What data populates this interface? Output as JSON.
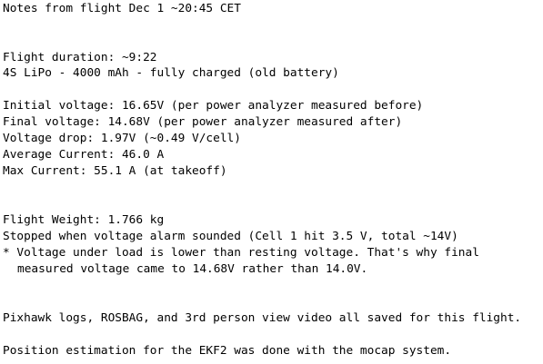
{
  "notes": {
    "header": "Notes from flight Dec 1 ~20:45 CET",
    "flight_duration": "Flight duration: ~9:22",
    "battery": "4S LiPo - 4000 mAh - fully charged (old battery)",
    "initial_voltage": "Initial voltage: 16.65V (per power analyzer measured before)",
    "final_voltage": "Final voltage: 14.68V (per power analyzer measured after)",
    "voltage_drop": "Voltage drop: 1.97V (~0.49 V/cell)",
    "average_current": "Average Current: 46.0 A",
    "max_current": "Max Current: 55.1 A (at takeoff)",
    "flight_weight": "Flight Weight: 1.766 kg",
    "stopped_when": "Stopped when voltage alarm sounded (Cell 1 hit 3.5 V, total ~14V)",
    "footnote_line1": "* Voltage under load is lower than resting voltage. That's why final",
    "footnote_line2": "measured voltage came to 14.68V rather than 14.0V.",
    "logs_saved": "Pixhawk logs, ROSBAG, and 3rd person view video all saved for this flight.",
    "position_estimation": "Position estimation for the EKF2 was done with the mocap system."
  }
}
